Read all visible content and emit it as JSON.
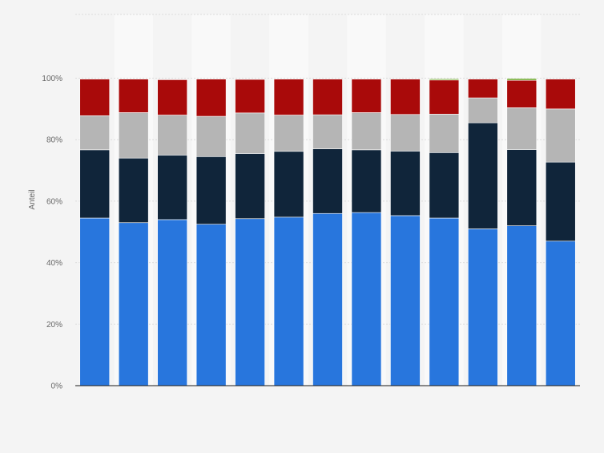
{
  "chart_data": {
    "type": "bar",
    "stacked": true,
    "categories": [
      "",
      "",
      "",
      "",
      "",
      "",
      "",
      "",
      "",
      "",
      "",
      "",
      ""
    ],
    "ylabel": "Anteil",
    "ylim": [
      0,
      100
    ],
    "yticks": [
      0,
      20,
      40,
      60,
      80,
      100
    ],
    "ytick_labels": [
      "0%",
      "20%",
      "40%",
      "60%",
      "80%",
      "100%"
    ],
    "grid": true,
    "legend": "none",
    "colors": {
      "background": "#f4f4f4",
      "plot_background": "#f4f4f4",
      "alt_band": "#f9f9f9",
      "gridline": "#dcdcdc",
      "axis_line": "#1a1a1a"
    },
    "series": [
      {
        "color": "#2876dd",
        "values": [
          54.5,
          53,
          54,
          52.5,
          54.3,
          54.8,
          56,
          56.3,
          55.3,
          54.5,
          51,
          52,
          47
        ]
      },
      {
        "color": "#10253a",
        "values": [
          22.2,
          21,
          21,
          22,
          21.2,
          21.4,
          21,
          20.4,
          21,
          21.3,
          34.5,
          24.8,
          25.7
        ]
      },
      {
        "color": "#b5b5b5",
        "values": [
          11.1,
          14.8,
          13,
          13.1,
          13.2,
          11.8,
          11.1,
          12.1,
          11.9,
          12.5,
          8.1,
          13.6,
          17.3
        ]
      },
      {
        "color": "#a90a0a",
        "values": [
          11.9,
          10.9,
          11.5,
          12.1,
          10.9,
          11.7,
          11.6,
          10.9,
          11.5,
          11.1,
          6.1,
          8.9,
          9.7
        ]
      },
      {
        "color": "#7cb342",
        "values": [
          0,
          0,
          0,
          0,
          0,
          0,
          0,
          0,
          0,
          0.4,
          0,
          0.6,
          0
        ]
      }
    ]
  }
}
